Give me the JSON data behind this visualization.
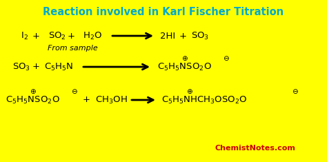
{
  "title": "Reaction involved in Karl Fischer Titration",
  "title_color": "#00AACC",
  "background_color": "#FFFF00",
  "watermark": "ChemistNotes.com",
  "watermark_color": "#CC0000",
  "figsize": [
    4.74,
    2.35
  ],
  "dpi": 100,
  "reaction1_left": "I$_2$  +  SO$_2$  +  H$_2$O",
  "reaction1_right": "2HI  +  SO$_3$",
  "reaction1_note": "From sample",
  "reaction2_left": "SO$_3$  +  C$_5$H$_5$N",
  "reaction2_right_base": "C$_5$H$_5$NSO$_2$O",
  "reaction3_left_base": "C$_5$H$_5$NSO$_2$O",
  "reaction3_mid": "+ CH$_3$OH",
  "reaction3_right_base": "C$_5$H$_5$NHCH$_3$OSO$_2$O"
}
